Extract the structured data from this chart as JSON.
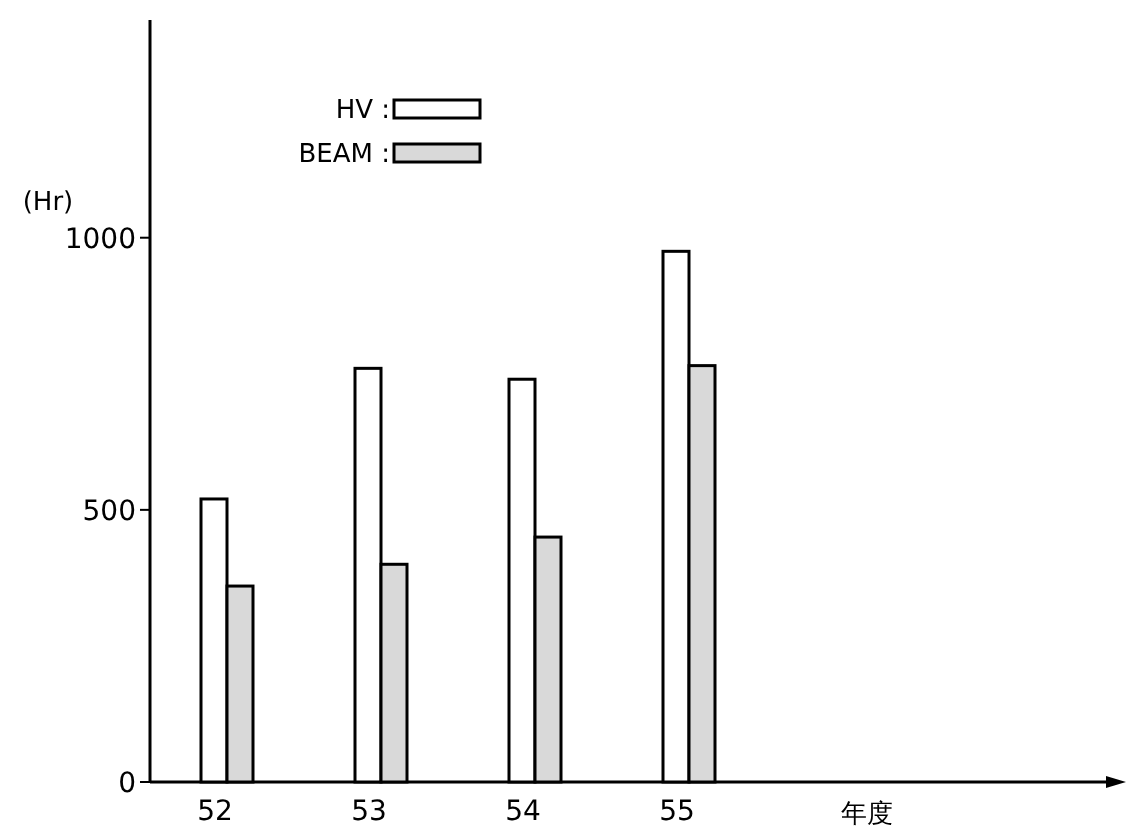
{
  "chart_data": {
    "type": "bar",
    "categories": [
      "52",
      "53",
      "54",
      "55"
    ],
    "xlabel": "年度",
    "ylabel": "(Hr)",
    "ylim": [
      0,
      1400
    ],
    "yticks": [
      0,
      500,
      1000
    ],
    "legend": "top",
    "series": [
      {
        "name": "HV :",
        "color": "#ffffff",
        "values": [
          520,
          760,
          740,
          975
        ]
      },
      {
        "name": "BEAM :",
        "color": "#d9d9d9",
        "values": [
          360,
          400,
          450,
          765
        ]
      }
    ]
  }
}
